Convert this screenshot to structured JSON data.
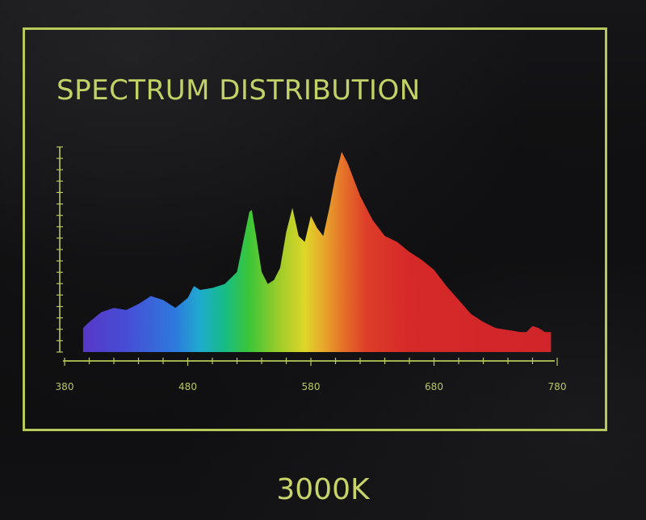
{
  "title": "SPECTRUM DISTRIBUTION",
  "color_temperature": "3000K",
  "colors": {
    "frame": "#b6c95a",
    "text": "#c3d266",
    "axis": "#b6c95a",
    "background": "#0d0d0e"
  },
  "chart_data": {
    "type": "area",
    "title": "SPECTRUM DISTRIBUTION",
    "xlabel": "",
    "ylabel": "",
    "xlim": [
      380,
      780
    ],
    "ylim": [
      0,
      1
    ],
    "x_ticks": [
      380,
      480,
      580,
      680,
      780
    ],
    "x_tick_labels": [
      "380",
      "480",
      "580",
      "680",
      "780"
    ],
    "grid": false,
    "fill": "wavelength-rainbow",
    "series": [
      {
        "x": [
          395,
          400,
          410,
          420,
          430,
          440,
          450,
          460,
          470,
          480,
          485,
          490,
          500,
          510,
          520,
          525,
          530,
          532,
          535,
          540,
          545,
          550,
          555,
          560,
          565,
          570,
          575,
          580,
          585,
          590,
          595,
          600,
          605,
          610,
          620,
          630,
          640,
          650,
          660,
          670,
          680,
          690,
          700,
          710,
          720,
          730,
          740,
          750,
          755,
          760,
          765,
          770,
          775
        ],
        "y": [
          0.12,
          0.15,
          0.2,
          0.22,
          0.21,
          0.24,
          0.28,
          0.26,
          0.22,
          0.27,
          0.33,
          0.31,
          0.32,
          0.34,
          0.4,
          0.55,
          0.7,
          0.71,
          0.6,
          0.4,
          0.34,
          0.36,
          0.42,
          0.6,
          0.72,
          0.58,
          0.55,
          0.68,
          0.62,
          0.58,
          0.72,
          0.88,
          1.0,
          0.94,
          0.78,
          0.66,
          0.58,
          0.55,
          0.5,
          0.46,
          0.41,
          0.33,
          0.26,
          0.19,
          0.15,
          0.12,
          0.11,
          0.1,
          0.1,
          0.13,
          0.12,
          0.1,
          0.1
        ]
      }
    ]
  }
}
